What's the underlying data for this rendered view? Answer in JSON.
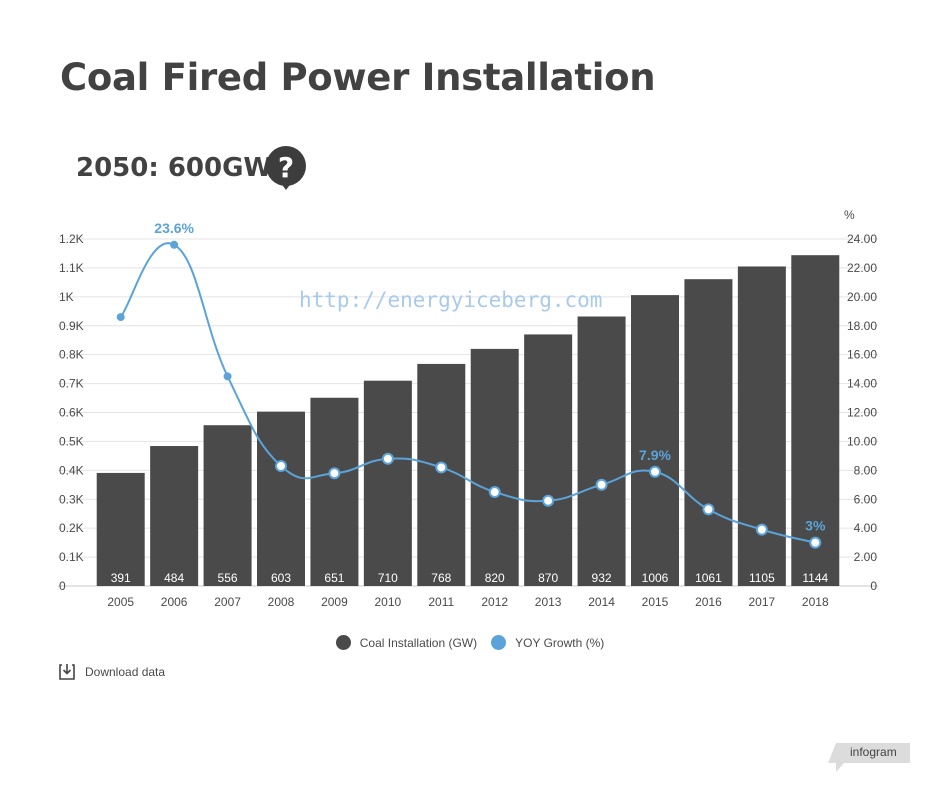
{
  "title": "Coal Fired Power Installation",
  "subtitle": "2050: 600GW",
  "help_icon": "question-mark-icon",
  "download_label": "Download data",
  "download_icon": "download-icon",
  "brand": "infogram",
  "colors": {
    "bar": "#4a4a4a",
    "line": "#5ba3d9",
    "title": "#424242"
  },
  "chart_data": {
    "type": "bar",
    "categories": [
      "2005",
      "2006",
      "2007",
      "2008",
      "2009",
      "2010",
      "2011",
      "2012",
      "2013",
      "2014",
      "2015",
      "2016",
      "2017",
      "2018"
    ],
    "series": [
      {
        "name": "Coal Installation (GW)",
        "type": "bar",
        "axis": "left",
        "values": [
          391,
          484,
          556,
          603,
          651,
          710,
          768,
          820,
          870,
          932,
          1006,
          1061,
          1105,
          1144
        ]
      },
      {
        "name": "YOY Growth (%)",
        "type": "line",
        "axis": "right",
        "values": [
          18.6,
          23.6,
          14.5,
          8.3,
          7.8,
          8.8,
          8.2,
          6.5,
          5.9,
          7.0,
          7.9,
          5.3,
          3.9,
          3.0
        ],
        "labels": {
          "1": "23.6%",
          "10": "7.9%",
          "13": "3%"
        }
      }
    ],
    "left_axis": {
      "ticks": [
        "0",
        "0.1K",
        "0.2K",
        "0.3K",
        "0.4K",
        "0.5K",
        "0.6K",
        "0.7K",
        "0.8K",
        "0.9K",
        "1K",
        "1.1K",
        "1.2K"
      ],
      "ylim": [
        0,
        1200
      ]
    },
    "right_axis": {
      "unit_label": "%",
      "ticks": [
        "0",
        "2.00",
        "4.00",
        "6.00",
        "8.00",
        "10.00",
        "12.00",
        "14.00",
        "16.00",
        "18.00",
        "20.00",
        "22.00",
        "24.00"
      ],
      "ylim": [
        0,
        24
      ]
    },
    "watermark": "http://energyiceberg.com",
    "grid": true,
    "legend_position": "bottom"
  }
}
